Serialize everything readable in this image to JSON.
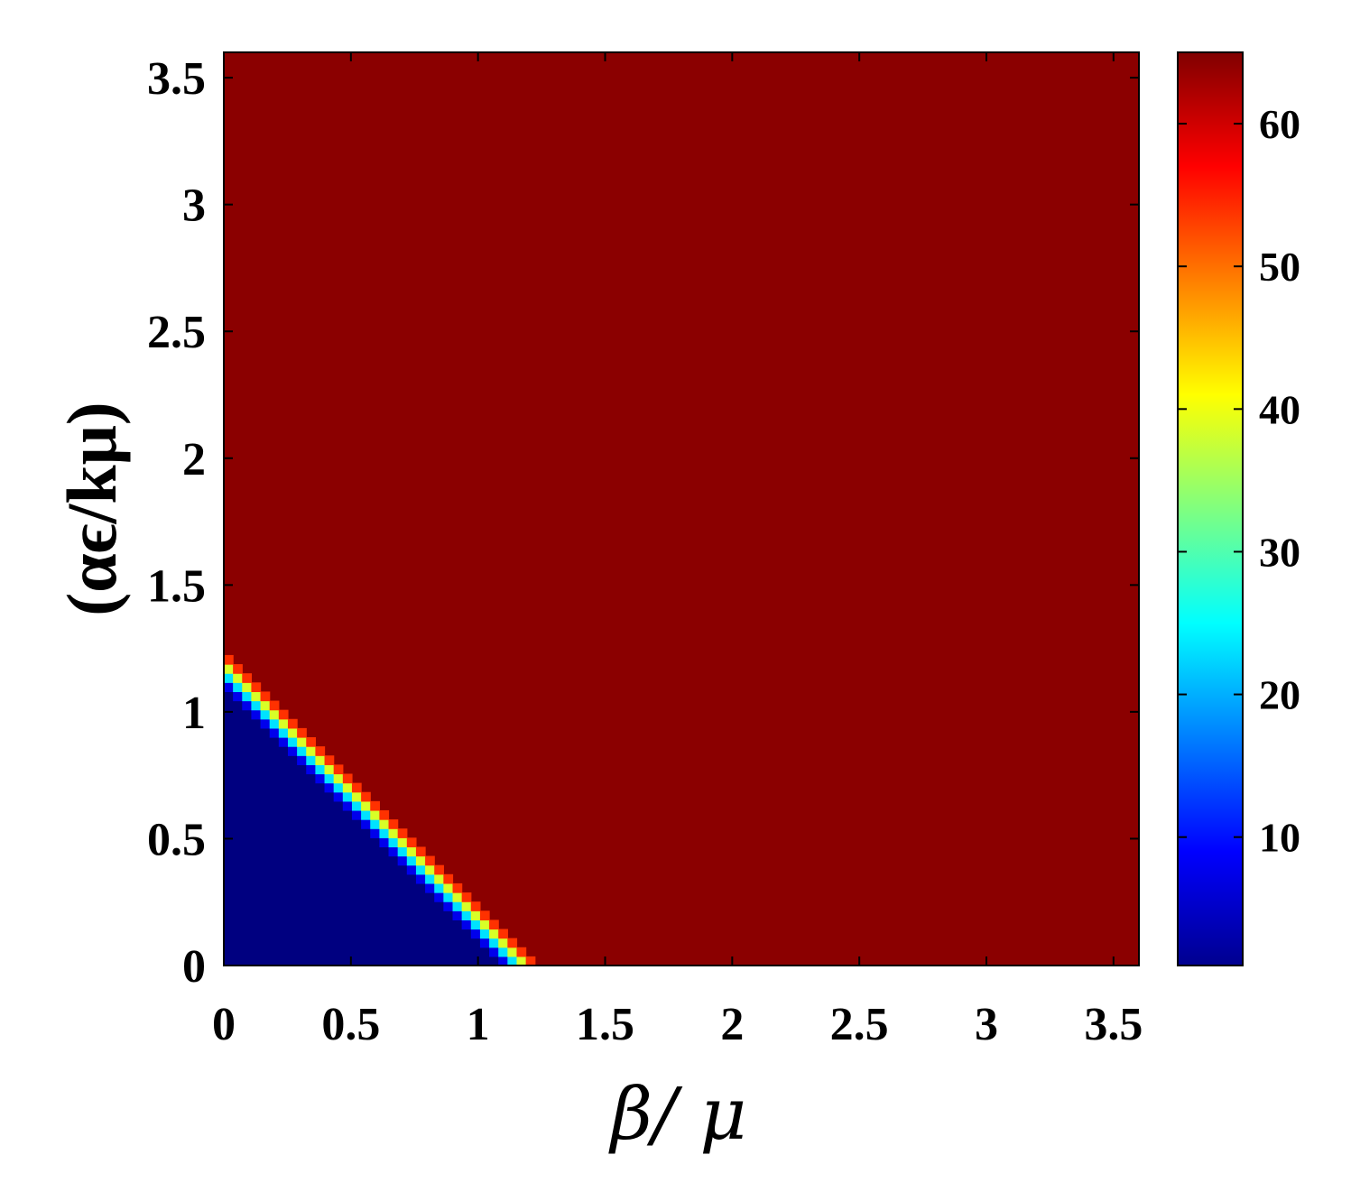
{
  "chart_data": {
    "type": "heatmap",
    "xlabel": "β/ μ",
    "ylabel": "(αϵ/kμ)",
    "xlim": [
      0,
      3.6
    ],
    "ylim": [
      0,
      3.6
    ],
    "x_ticks": [
      0,
      0.5,
      1,
      1.5,
      2,
      2.5,
      3,
      3.5
    ],
    "x_tick_labels": [
      "0",
      "0.5",
      "1",
      "1.5",
      "2",
      "2.5",
      "3",
      "3.5"
    ],
    "y_ticks": [
      0,
      0.5,
      1,
      1.5,
      2,
      2.5,
      3,
      3.5
    ],
    "y_tick_labels": [
      "0",
      "0.5",
      "1",
      "1.5",
      "2",
      "2.5",
      "3",
      "3.5"
    ],
    "grid": false,
    "colormap": "jet",
    "colorbar": {
      "range": [
        1,
        65
      ],
      "ticks": [
        10,
        20,
        30,
        40,
        50,
        60
      ],
      "tick_labels": [
        "10",
        "20",
        "30",
        "40",
        "50",
        "60"
      ],
      "position": "right"
    },
    "regions": [
      {
        "description_value": "low",
        "value": 1,
        "condition": "x + y < 1.1"
      },
      {
        "description_value": "high",
        "value": 65,
        "condition": "x + y > 1.25"
      }
    ],
    "transition": {
      "boundary_sum": 1.175,
      "width": 0.15
    },
    "grid_resolution": 100
  },
  "colors": {
    "high": "#8b0000",
    "low": "#00008f",
    "axes": "#000000",
    "background": "#ffffff"
  }
}
